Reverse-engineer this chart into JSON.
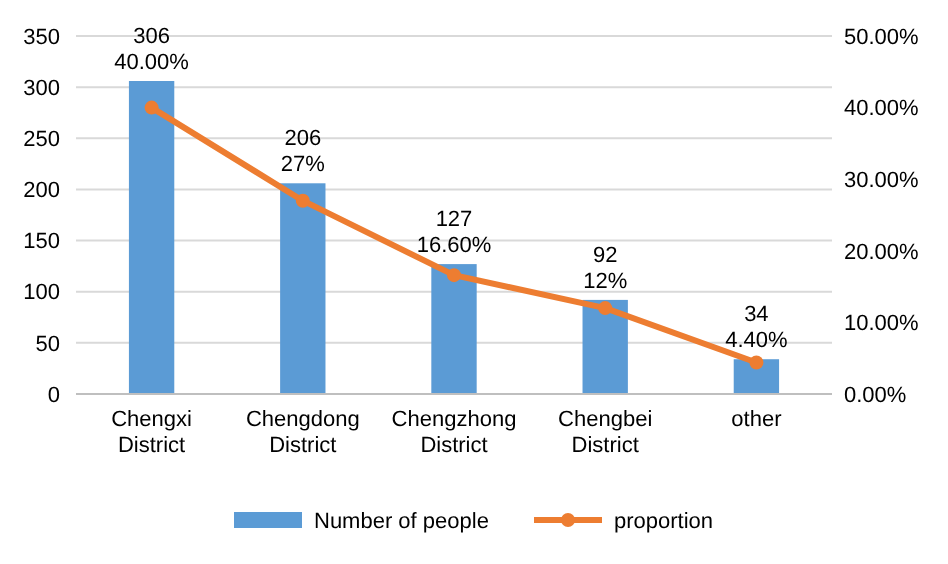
{
  "chart_data": {
    "type": "bar",
    "categories": [
      "Chengxi District",
      "Chengdong District",
      "Chengzhong District",
      "Chengbei District",
      "other"
    ],
    "series": [
      {
        "name": "Number of people",
        "color": "#5b9bd5",
        "values": [
          306,
          206,
          127,
          92,
          34
        ],
        "value_labels": [
          "306",
          "206",
          "127",
          "92",
          "34"
        ]
      },
      {
        "name": "proportion",
        "type": "line",
        "axis": "y2",
        "color": "#ed7d31",
        "values": [
          40,
          27,
          16.6,
          12,
          4.4
        ],
        "value_labels": [
          "40.00%",
          "27%",
          "16.60%",
          "12%",
          "4.40%"
        ],
        "marker": "circle"
      }
    ],
    "ylim": [
      0,
      350
    ],
    "yticks": [
      0,
      50,
      100,
      150,
      200,
      250,
      300,
      350
    ],
    "y2lim": [
      0,
      50
    ],
    "y2ticks": [
      {
        "value": 0,
        "label": "0.00%"
      },
      {
        "value": 10,
        "label": "10.00%"
      },
      {
        "value": 20,
        "label": "20.00%"
      },
      {
        "value": 30,
        "label": "30.00%"
      },
      {
        "value": 40,
        "label": "40.00%"
      },
      {
        "value": 50,
        "label": "50.00%"
      }
    ],
    "grid": "y",
    "legend": "bottom"
  }
}
